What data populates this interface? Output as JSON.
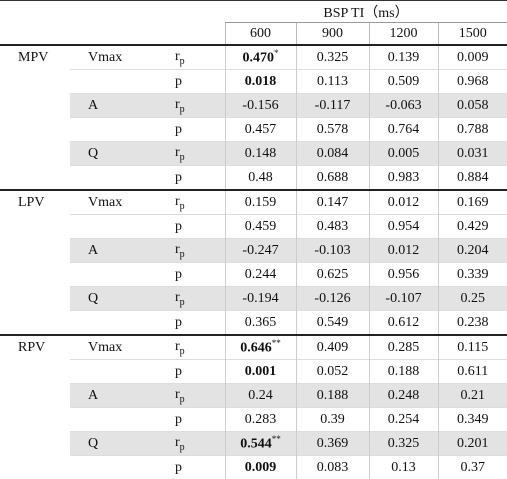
{
  "header": {
    "title": "BSP TI（ms）",
    "columns": [
      "600",
      "900",
      "1200",
      "1500"
    ]
  },
  "groups": [
    {
      "name": "MPV",
      "params": [
        {
          "name": "Vmax",
          "rows": [
            {
              "stat": "r",
              "sub": "p",
              "cells": [
                {
                  "text": "0.470",
                  "sup": "*",
                  "bold": true
                },
                "0.325",
                "0.139",
                "0.009"
              ]
            },
            {
              "stat": "p",
              "cells": [
                {
                  "text": "0.018",
                  "bold": true
                },
                "0.113",
                "0.509",
                "0.968"
              ]
            }
          ]
        },
        {
          "name": "A",
          "rows": [
            {
              "stat": "r",
              "sub": "p",
              "cells": [
                "-0.156",
                "-0.117",
                "-0.063",
                "0.058"
              ]
            },
            {
              "stat": "p",
              "cells": [
                "0.457",
                "0.578",
                "0.764",
                "0.788"
              ]
            }
          ]
        },
        {
          "name": "Q",
          "rows": [
            {
              "stat": "r",
              "sub": "p",
              "cells": [
                "0.148",
                "0.084",
                "0.005",
                "0.031"
              ]
            },
            {
              "stat": "p",
              "cells": [
                "0.48",
                "0.688",
                "0.983",
                "0.884"
              ]
            }
          ]
        }
      ]
    },
    {
      "name": "LPV",
      "params": [
        {
          "name": "Vmax",
          "rows": [
            {
              "stat": "r",
              "sub": "p",
              "cells": [
                "0.159",
                "0.147",
                "0.012",
                "0.169"
              ]
            },
            {
              "stat": "p",
              "cells": [
                "0.459",
                "0.483",
                "0.954",
                "0.429"
              ]
            }
          ]
        },
        {
          "name": "A",
          "rows": [
            {
              "stat": "r",
              "sub": "p",
              "cells": [
                "-0.247",
                "-0.103",
                "0.012",
                "0.204"
              ]
            },
            {
              "stat": "p",
              "cells": [
                "0.244",
                "0.625",
                "0.956",
                "0.339"
              ]
            }
          ]
        },
        {
          "name": "Q",
          "rows": [
            {
              "stat": "r",
              "sub": "p",
              "cells": [
                "-0.194",
                "-0.126",
                "-0.107",
                "0.25"
              ]
            },
            {
              "stat": "p",
              "cells": [
                "0.365",
                "0.549",
                "0.612",
                "0.238"
              ]
            }
          ]
        }
      ]
    },
    {
      "name": "RPV",
      "params": [
        {
          "name": "Vmax",
          "rows": [
            {
              "stat": "r",
              "sub": "p",
              "cells": [
                {
                  "text": "0.646",
                  "sup": "**",
                  "bold": true
                },
                "0.409",
                "0.285",
                "0.115"
              ]
            },
            {
              "stat": "p",
              "cells": [
                {
                  "text": "0.001",
                  "bold": true
                },
                "0.052",
                "0.188",
                "0.611"
              ]
            }
          ]
        },
        {
          "name": "A",
          "rows": [
            {
              "stat": "r",
              "sub": "p",
              "cells": [
                "0.24",
                "0.188",
                "0.248",
                "0.21"
              ]
            },
            {
              "stat": "p",
              "cells": [
                "0.283",
                "0.39",
                "0.254",
                "0.349"
              ]
            }
          ]
        },
        {
          "name": "Q",
          "rows": [
            {
              "stat": "r",
              "sub": "p",
              "cells": [
                {
                  "text": "0.544",
                  "sup": "**",
                  "bold": true
                },
                "0.369",
                "0.325",
                "0.201"
              ]
            },
            {
              "stat": "p",
              "cells": [
                {
                  "text": "0.009",
                  "bold": true
                },
                "0.083",
                "0.13",
                "0.37"
              ]
            }
          ]
        }
      ]
    }
  ]
}
